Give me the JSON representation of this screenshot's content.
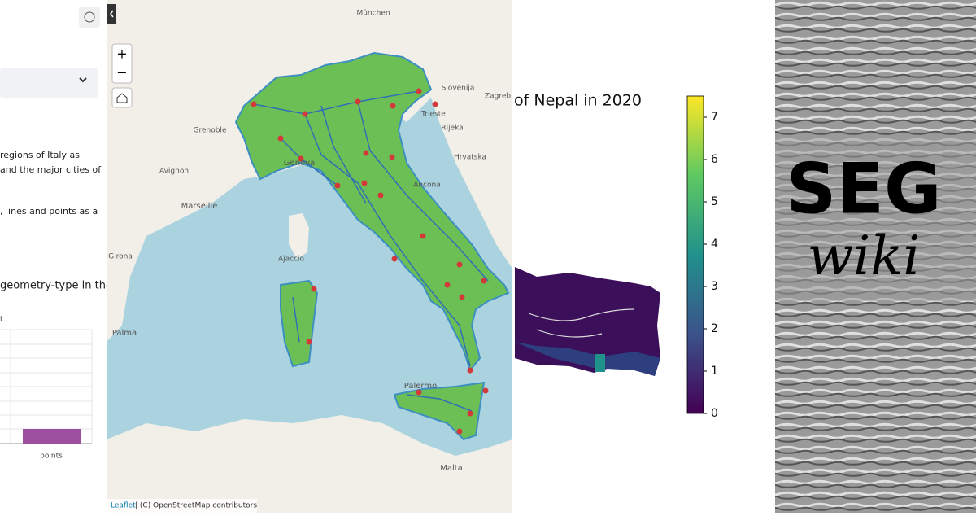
{
  "sidebar": {
    "paragraph_lines": [
      "regions of Italy as",
      "and the major cities of",
      ", lines and points as a"
    ],
    "heading": "geometry-type in the",
    "chart_label": "t",
    "chart": {
      "categories": [
        "points"
      ]
    }
  },
  "map": {
    "zoom_in": "+",
    "zoom_out": "−",
    "attribution_link": "Leaflet",
    "attribution": "| (C) OpenStreetMap contributors",
    "labels": [
      "München",
      "Slovenija",
      "Zagreb",
      "Trieste",
      "Rijeka",
      "Hrvatska",
      "Grenoble",
      "Avignon",
      "Marseille",
      "Genova",
      "Ancona",
      "Ajaccio",
      "Girona",
      "Palma",
      "Palermo",
      "Malta"
    ]
  },
  "nepal": {
    "title": "of Nepal in 2020",
    "colorbar": {
      "lim": [
        0,
        7.5
      ],
      "ticks": [
        0,
        1,
        2,
        3,
        4,
        5,
        6,
        7
      ]
    }
  },
  "seg": {
    "logo": "SEG",
    "subtitle": "wiki"
  }
}
